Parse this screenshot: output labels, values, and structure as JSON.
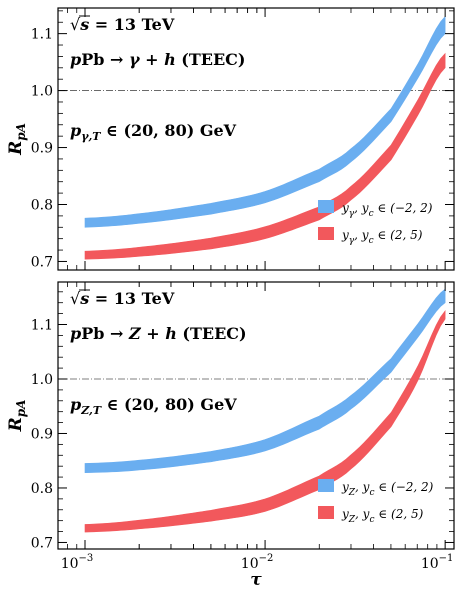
{
  "chart_data": [
    {
      "type": "area",
      "ylabel": "R_pA",
      "xlabel": "τ",
      "xscale": "log",
      "xlim": [
        0.000708,
        0.112
      ],
      "ylim": [
        0.685,
        1.145
      ],
      "x_ticks": [
        0.001,
        0.01,
        0.1
      ],
      "x_tick_labels": [
        "10^-3",
        "10^-2",
        "10^-1"
      ],
      "y_ticks": [
        0.7,
        0.8,
        0.9,
        1.0,
        1.1
      ],
      "y_tick_labels": [
        "0.7",
        "0.8",
        "0.9",
        "1.0",
        "1.1"
      ],
      "reference_line": 1.0,
      "annotations": [
        "√s = 13 TeV",
        "pPb → γ + h (TEEC)",
        "p_γ,T ∈ (20, 80) GeV"
      ],
      "legend_position": "lower-right",
      "x": [
        0.001,
        0.002,
        0.005,
        0.01,
        0.02,
        0.03,
        0.05,
        0.07,
        0.1
      ],
      "series": [
        {
          "name": "y_γ, y_c ∈ (−2, 2)",
          "color": "#6aaef0",
          "lower": [
            0.76,
            0.767,
            0.783,
            0.803,
            0.84,
            0.875,
            0.945,
            1.02,
            1.1
          ],
          "upper": [
            0.776,
            0.784,
            0.802,
            0.823,
            0.862,
            0.898,
            0.968,
            1.045,
            1.13
          ]
        },
        {
          "name": "y_γ, y_c ∈ (2, 5)",
          "color": "#f2585c",
          "lower": [
            0.704,
            0.709,
            0.722,
            0.74,
            0.773,
            0.808,
            0.878,
            0.955,
            1.04
          ],
          "upper": [
            0.718,
            0.725,
            0.741,
            0.761,
            0.796,
            0.832,
            0.904,
            0.982,
            1.065
          ]
        }
      ]
    },
    {
      "type": "area",
      "ylabel": "R_pA",
      "xlabel": "τ",
      "xscale": "log",
      "xlim": [
        0.000708,
        0.112
      ],
      "ylim": [
        0.688,
        1.178
      ],
      "x_ticks": [
        0.001,
        0.01,
        0.1
      ],
      "x_tick_labels": [
        "10^-3",
        "10^-2",
        "10^-1"
      ],
      "y_ticks": [
        0.7,
        0.8,
        0.9,
        1.0,
        1.1
      ],
      "y_tick_labels": [
        "0.7",
        "0.8",
        "0.9",
        "1.0",
        "1.1"
      ],
      "reference_line": 1.0,
      "annotations": [
        "√s = 13 TeV",
        "pPb → Z + h (TEEC)",
        "p_Z,T ∈ (20, 80) GeV"
      ],
      "legend_position": "lower-right",
      "x": [
        0.001,
        0.002,
        0.005,
        0.01,
        0.02,
        0.03,
        0.05,
        0.07,
        0.1
      ],
      "series": [
        {
          "name": "y_Z, y_c ∈ (−2, 2)",
          "color": "#6aaef0",
          "lower": [
            0.828,
            0.833,
            0.848,
            0.868,
            0.908,
            0.945,
            1.012,
            1.075,
            1.14
          ],
          "upper": [
            0.845,
            0.851,
            0.867,
            0.889,
            0.932,
            0.97,
            1.037,
            1.1,
            1.165
          ]
        },
        {
          "name": "y_Z, y_c ∈ (2, 5)",
          "color": "#f2585c",
          "lower": [
            0.719,
            0.725,
            0.739,
            0.757,
            0.797,
            0.835,
            0.912,
            0.995,
            1.11
          ],
          "upper": [
            0.733,
            0.741,
            0.759,
            0.78,
            0.822,
            0.861,
            0.938,
            1.022,
            1.125
          ]
        }
      ]
    }
  ]
}
